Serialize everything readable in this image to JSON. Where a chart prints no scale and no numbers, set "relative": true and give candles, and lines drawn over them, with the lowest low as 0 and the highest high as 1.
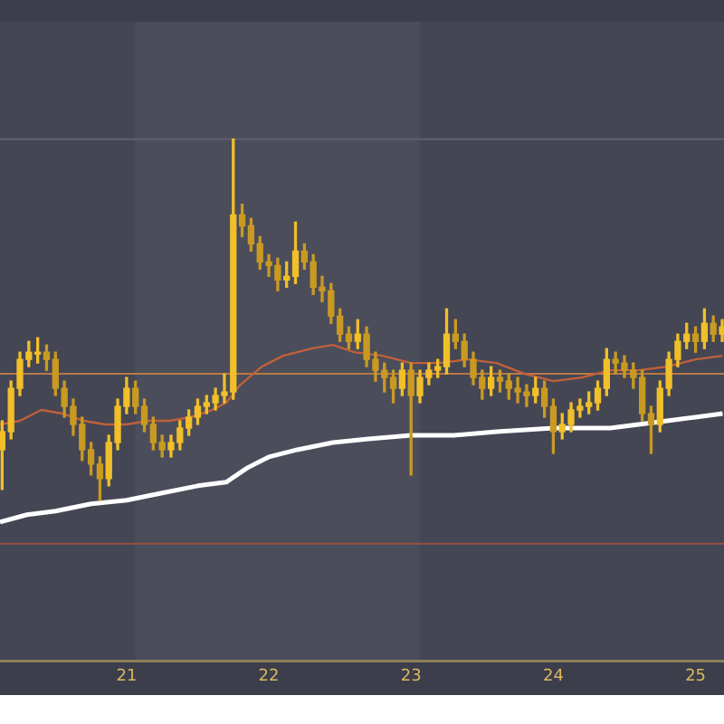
{
  "chart_data": {
    "type": "candlestick",
    "relative": true,
    "colors": [
      "#f0bf2a",
      "#f0bf2a",
      "#f0bf2a",
      "#f0bf2a",
      "#f0bf2a",
      "#c99a22",
      "#c99a22",
      "#c99a22",
      "#c99a22",
      "#c99a22",
      "#c99a22",
      "#c99a22",
      "#f0bf2a",
      "#f0bf2a",
      "#f0bf2a",
      "#c99a22",
      "#c99a22",
      "#c99a22",
      "#c99a22",
      "#f0bf2a",
      "#f0bf2a",
      "#f0bf2a",
      "#f0bf2a",
      "#f0bf2a",
      "#f0bf2a",
      "#f0bf2a",
      "#f0bf2a",
      "#c99a22",
      "#c99a22",
      "#c99a22",
      "#c99a22",
      "#c99a22",
      "#f0bf2a",
      "#f0bf2a",
      "#c99a22",
      "#c99a22",
      "#c99a22",
      "#c99a22",
      "#c99a22",
      "#c99a22",
      "#f0bf2a",
      "#c99a22",
      "#c99a22",
      "#c99a22",
      "#c99a22",
      "#f0bf2a",
      "#c99a22",
      "#f0bf2a",
      "#f0bf2a",
      "#f0bf2a",
      "#f0bf2a",
      "#c99a22",
      "#c99a22",
      "#c99a22",
      "#c99a22",
      "#f0bf2a",
      "#c99a22",
      "#c99a22",
      "#c99a22",
      "#c99a22",
      "#f0bf2a",
      "#c99a22",
      "#c99a22",
      "#f0bf2a",
      "#f0bf2a",
      "#f0bf2a",
      "#f0bf2a",
      "#f0bf2a",
      "#f0bf2a",
      "#c99a22",
      "#c99a22",
      "#c99a22",
      "#c99a22",
      "#c99a22",
      "#f0bf2a",
      "#f0bf2a",
      "#f0bf2a",
      "#f0bf2a",
      "#c99a22",
      "#f0bf2a",
      "#c99a22",
      "#f0bf2a"
    ],
    "x": [
      20.125,
      20.1875,
      20.25,
      20.3125,
      20.375,
      20.4375,
      20.5,
      20.5625,
      20.625,
      20.6875,
      20.75,
      20.8125,
      20.875,
      20.9375,
      21,
      21.0625,
      21.125,
      21.1875,
      21.25,
      21.3125,
      21.375,
      21.4375,
      21.5,
      21.5625,
      21.625,
      21.6875,
      21.75,
      21.8125,
      21.875,
      21.9375,
      22,
      22.0625,
      22.125,
      22.1875,
      22.25,
      22.3125,
      22.375,
      22.4375,
      22.5,
      22.5625,
      22.625,
      22.6875,
      22.75,
      22.8125,
      22.875,
      22.9375,
      23,
      23.0625,
      23.125,
      23.1875,
      23.25,
      23.3125,
      23.375,
      23.4375,
      23.5,
      23.5625,
      23.625,
      23.6875,
      23.75,
      23.8125,
      23.875,
      23.9375,
      24,
      24.0625,
      24.125,
      24.1875,
      24.25,
      24.3125,
      24.375,
      24.4375,
      24.5,
      24.5625,
      24.625,
      24.6875,
      24.75,
      24.8125,
      24.875,
      24.9375,
      25,
      25.0625,
      25.125,
      25.1875
    ],
    "ohlc": [
      [
        0.14,
        0.22,
        0.03,
        0.19
      ],
      [
        0.19,
        0.33,
        0.17,
        0.31
      ],
      [
        0.31,
        0.41,
        0.29,
        0.39
      ],
      [
        0.39,
        0.44,
        0.37,
        0.41
      ],
      [
        0.41,
        0.45,
        0.38,
        0.41
      ],
      [
        0.41,
        0.43,
        0.36,
        0.39
      ],
      [
        0.39,
        0.41,
        0.29,
        0.31
      ],
      [
        0.31,
        0.33,
        0.23,
        0.26
      ],
      [
        0.26,
        0.28,
        0.18,
        0.21
      ],
      [
        0.21,
        0.23,
        0.11,
        0.14
      ],
      [
        0.14,
        0.16,
        0.07,
        0.1
      ],
      [
        0.1,
        0.12,
        0,
        0.06
      ],
      [
        0.06,
        0.18,
        0.04,
        0.16
      ],
      [
        0.16,
        0.28,
        0.14,
        0.26
      ],
      [
        0.26,
        0.34,
        0.24,
        0.31
      ],
      [
        0.31,
        0.33,
        0.24,
        0.26
      ],
      [
        0.26,
        0.28,
        0.19,
        0.21
      ],
      [
        0.21,
        0.23,
        0.14,
        0.16
      ],
      [
        0.16,
        0.18,
        0.12,
        0.14
      ],
      [
        0.14,
        0.18,
        0.12,
        0.16
      ],
      [
        0.16,
        0.22,
        0.14,
        0.2
      ],
      [
        0.2,
        0.25,
        0.18,
        0.23
      ],
      [
        0.23,
        0.28,
        0.21,
        0.26
      ],
      [
        0.26,
        0.29,
        0.24,
        0.27
      ],
      [
        0.27,
        0.31,
        0.25,
        0.29
      ],
      [
        0.29,
        0.35,
        0.27,
        0.3
      ],
      [
        0.3,
        1,
        0.28,
        0.79
      ],
      [
        0.79,
        0.82,
        0.73,
        0.76
      ],
      [
        0.76,
        0.78,
        0.69,
        0.71
      ],
      [
        0.71,
        0.73,
        0.64,
        0.66
      ],
      [
        0.66,
        0.68,
        0.62,
        0.65
      ],
      [
        0.65,
        0.67,
        0.58,
        0.61
      ],
      [
        0.61,
        0.66,
        0.59,
        0.62
      ],
      [
        0.62,
        0.77,
        0.6,
        0.69
      ],
      [
        0.69,
        0.71,
        0.64,
        0.66
      ],
      [
        0.66,
        0.68,
        0.57,
        0.59
      ],
      [
        0.59,
        0.62,
        0.55,
        0.58
      ],
      [
        0.58,
        0.6,
        0.49,
        0.51
      ],
      [
        0.51,
        0.53,
        0.44,
        0.46
      ],
      [
        0.46,
        0.48,
        0.42,
        0.44
      ],
      [
        0.44,
        0.5,
        0.42,
        0.46
      ],
      [
        0.46,
        0.48,
        0.37,
        0.39
      ],
      [
        0.39,
        0.41,
        0.33,
        0.36
      ],
      [
        0.36,
        0.38,
        0.3,
        0.34
      ],
      [
        0.34,
        0.36,
        0.27,
        0.31
      ],
      [
        0.31,
        0.38,
        0.29,
        0.36
      ],
      [
        0.36,
        0.38,
        0.07,
        0.29
      ],
      [
        0.29,
        0.36,
        0.27,
        0.34
      ],
      [
        0.34,
        0.38,
        0.32,
        0.36
      ],
      [
        0.36,
        0.39,
        0.34,
        0.37
      ],
      [
        0.37,
        0.53,
        0.35,
        0.46
      ],
      [
        0.46,
        0.5,
        0.42,
        0.44
      ],
      [
        0.44,
        0.46,
        0.37,
        0.39
      ],
      [
        0.39,
        0.41,
        0.32,
        0.34
      ],
      [
        0.34,
        0.36,
        0.28,
        0.31
      ],
      [
        0.31,
        0.37,
        0.29,
        0.34
      ],
      [
        0.34,
        0.36,
        0.3,
        0.33
      ],
      [
        0.33,
        0.35,
        0.28,
        0.31
      ],
      [
        0.31,
        0.34,
        0.27,
        0.3
      ],
      [
        0.3,
        0.32,
        0.26,
        0.29
      ],
      [
        0.29,
        0.34,
        0.27,
        0.31
      ],
      [
        0.31,
        0.33,
        0.23,
        0.26
      ],
      [
        0.26,
        0.28,
        0.13,
        0.19
      ],
      [
        0.19,
        0.24,
        0.17,
        0.21
      ],
      [
        0.21,
        0.27,
        0.19,
        0.25
      ],
      [
        0.25,
        0.28,
        0.23,
        0.26
      ],
      [
        0.26,
        0.3,
        0.24,
        0.27
      ],
      [
        0.27,
        0.33,
        0.25,
        0.31
      ],
      [
        0.31,
        0.42,
        0.29,
        0.39
      ],
      [
        0.39,
        0.41,
        0.35,
        0.38
      ],
      [
        0.38,
        0.4,
        0.34,
        0.36
      ],
      [
        0.36,
        0.38,
        0.31,
        0.34
      ],
      [
        0.34,
        0.36,
        0.22,
        0.24
      ],
      [
        0.24,
        0.26,
        0.13,
        0.21
      ],
      [
        0.21,
        0.33,
        0.19,
        0.31
      ],
      [
        0.31,
        0.41,
        0.29,
        0.39
      ],
      [
        0.39,
        0.46,
        0.37,
        0.44
      ],
      [
        0.44,
        0.49,
        0.42,
        0.46
      ],
      [
        0.46,
        0.48,
        0.41,
        0.44
      ],
      [
        0.44,
        0.53,
        0.42,
        0.49
      ],
      [
        0.49,
        0.51,
        0.44,
        0.46
      ],
      [
        0.46,
        0.5,
        0.44,
        0.48
      ]
    ],
    "series": [
      {
        "type": "line",
        "color": "#c0603a",
        "x": [
          20.11,
          20.25,
          20.4,
          20.55,
          20.7,
          20.85,
          21.0,
          21.15,
          21.3,
          21.45,
          21.6,
          21.7,
          21.8,
          21.95,
          22.1,
          22.3,
          22.45,
          22.6,
          22.8,
          23.0,
          23.2,
          23.4,
          23.6,
          23.8,
          24.0,
          24.2,
          24.4,
          24.6,
          24.8,
          25.0,
          25.19
        ],
        "values": [
          0.21,
          0.22,
          0.25,
          0.24,
          0.22,
          0.21,
          0.21,
          0.22,
          0.22,
          0.23,
          0.25,
          0.27,
          0.32,
          0.37,
          0.4,
          0.42,
          0.43,
          0.41,
          0.4,
          0.38,
          0.38,
          0.39,
          0.38,
          0.35,
          0.33,
          0.34,
          0.36,
          0.36,
          0.37,
          0.39,
          0.4
        ]
      },
      {
        "type": "line",
        "color": "#ffffff",
        "x": [
          20.11,
          20.3,
          20.5,
          20.75,
          21.0,
          21.25,
          21.5,
          21.7,
          21.85,
          22.0,
          22.2,
          22.45,
          22.7,
          23.0,
          23.3,
          23.6,
          24.0,
          24.4,
          24.8,
          25.0,
          25.19
        ],
        "values": [
          -0.06,
          -0.04,
          -0.03,
          -0.01,
          0,
          0.02,
          0.04,
          0.05,
          0.09,
          0.12,
          0.14,
          0.16,
          0.17,
          0.18,
          0.18,
          0.19,
          0.2,
          0.2,
          0.22,
          0.23,
          0.24
        ]
      }
    ],
    "xlim": [
      20.11,
      25.2
    ],
    "xticks": [
      21,
      22,
      23,
      24,
      25
    ],
    "ref_lines": [
      {
        "axis": "y",
        "value": 1,
        "color": "#5e6070"
      },
      {
        "axis": "y",
        "value": 0.35,
        "color": "#b87a45"
      },
      {
        "axis": "y",
        "value": -0.12,
        "color": "#9a5040"
      }
    ],
    "bands": [
      {
        "axis": "x",
        "from": 21.06,
        "to": 23.06,
        "color": "#4b4d5a"
      }
    ]
  }
}
